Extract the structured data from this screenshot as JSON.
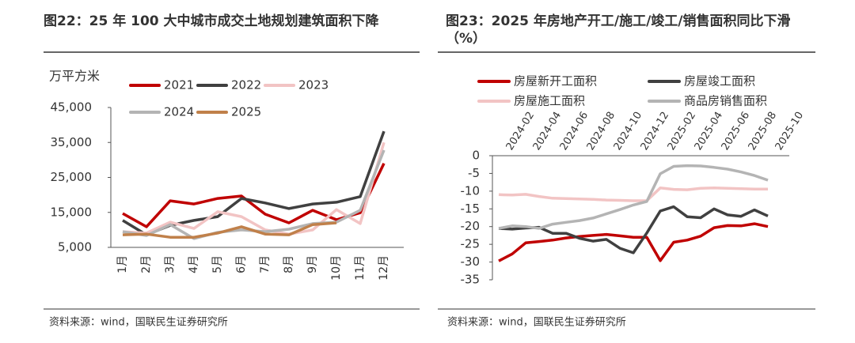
{
  "chart_data": [
    {
      "type": "line",
      "title": "图22：25 年 100 大中城市成交土地规划建筑面积下降",
      "y_label": "万平方米",
      "source": "资料来源：wind，国联民生证券研究所",
      "categories": [
        "1月",
        "2月",
        "3月",
        "4月",
        "5月",
        "6月",
        "7月",
        "8月",
        "9月",
        "10月",
        "11月",
        "12月"
      ],
      "ylim": [
        5000,
        45000
      ],
      "yticks": [
        {
          "value": 5000,
          "label": "5,000"
        },
        {
          "value": 15000,
          "label": "15,000"
        },
        {
          "value": 25000,
          "label": "25,000"
        },
        {
          "value": 35000,
          "label": "35,000"
        },
        {
          "value": 45000,
          "label": "45,000"
        }
      ],
      "grid": false,
      "series": [
        {
          "name": "2021",
          "color": "#c00000",
          "values": [
            14700,
            10900,
            18300,
            17400,
            19000,
            19700,
            14500,
            12000,
            15600,
            12900,
            14900,
            29000
          ]
        },
        {
          "name": "2022",
          "color": "#404040",
          "values": [
            12700,
            8600,
            11300,
            12700,
            13800,
            19000,
            17700,
            16100,
            17400,
            17900,
            19500,
            38200
          ]
        },
        {
          "name": "2023",
          "color": "#f2c4c4",
          "values": [
            9500,
            9100,
            12200,
            10400,
            15200,
            13800,
            10000,
            8800,
            10000,
            15800,
            11800,
            35000
          ]
        },
        {
          "name": "2024",
          "color": "#b4b4b4",
          "values": [
            9500,
            8400,
            11500,
            7500,
            9300,
            10000,
            9500,
            10200,
            11800,
            12200,
            15600,
            32800
          ]
        },
        {
          "name": "2025",
          "color": "#c0804a",
          "values": [
            8600,
            8800,
            7900,
            7900,
            9100,
            10900,
            8800,
            8600,
            11500,
            12000,
            null,
            null
          ]
        }
      ]
    },
    {
      "type": "line",
      "title": "图23：2025 年房地产开工/施工/竣工/销售面积同比下滑（%）",
      "source": "资料来源：wind，国联民生证券研究所",
      "categories": [
        null,
        "2024-02",
        null,
        "2024-04",
        null,
        "2024-06",
        null,
        "2024-08",
        null,
        "2024-10",
        null,
        "2024-12",
        null,
        "2025-02",
        null,
        "2025-04",
        null,
        "2025-06",
        null,
        "2025-08",
        null,
        "2025-10"
      ],
      "ylim": [
        -35,
        0
      ],
      "yticks": [
        0,
        -5,
        -10,
        -15,
        -20,
        -25,
        -30,
        -35
      ],
      "grid": false,
      "series": [
        {
          "name": "房屋新开工面积",
          "color": "#c00000",
          "values": [
            -29.7,
            -27.7,
            -24.6,
            -24.2,
            -23.8,
            -23.2,
            -22.8,
            -22.5,
            -22.2,
            -22.6,
            -23,
            -23,
            -29.6,
            -24.4,
            -23.8,
            -22.7,
            -20.3,
            -19.7,
            -19.8,
            -19.2,
            -20,
            null
          ]
        },
        {
          "name": "房屋竣工面积",
          "color": "#404040",
          "values": [
            -20.5,
            -20.7,
            -20.4,
            -20.2,
            -21.9,
            -21.9,
            -23.3,
            -24.1,
            -23.6,
            -26.1,
            -27.4,
            -21.8,
            -15.6,
            -14.4,
            -17.2,
            -17.5,
            -15,
            -16.7,
            -17.1,
            -15.3,
            -17,
            null
          ]
        },
        {
          "name": "房屋施工面积",
          "color": "#f2c4c4",
          "values": [
            -11,
            -11.1,
            -10.9,
            -11.5,
            -12,
            -12.1,
            -12.2,
            -12.3,
            -12.5,
            -12.6,
            -12.7,
            -12.7,
            -9.1,
            -9.5,
            -9.6,
            -9.2,
            -9.1,
            -9.2,
            -9.3,
            -9.4,
            -9.4,
            null
          ]
        },
        {
          "name": "商品房销售面积",
          "color": "#b4b4b4",
          "values": [
            -20.5,
            -19.8,
            -20,
            -20.5,
            -19.3,
            -18.8,
            -18.3,
            -17.6,
            -16.4,
            -15.2,
            -13.9,
            -12.9,
            -5.1,
            -3,
            -2.8,
            -2.9,
            -3.3,
            -3.8,
            -4.6,
            -5.6,
            -6.9,
            null
          ]
        }
      ]
    }
  ]
}
